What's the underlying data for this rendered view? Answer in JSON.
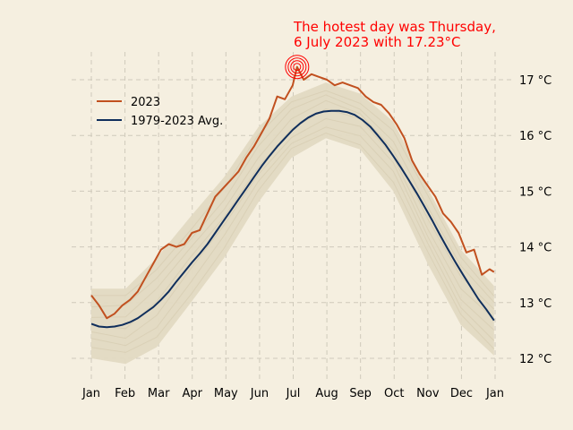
{
  "chart_data": {
    "type": "line",
    "title": "",
    "xlabel": "",
    "ylabel": "",
    "y_unit_suffix": " °C",
    "ylim": [
      11.6,
      17.6
    ],
    "yticks": [
      12,
      13,
      14,
      15,
      16,
      17
    ],
    "x_tick_labels": [
      "Jan",
      "Feb",
      "Mar",
      "Apr",
      "May",
      "Jun",
      "Jul",
      "Aug",
      "Sep",
      "Oct",
      "Nov",
      "Dec",
      "Jan"
    ],
    "grid": true,
    "legend_position": "upper-left",
    "annotation": {
      "line1": "The hotest day was Thursday,",
      "line2": "6 July 2023 with 17.23°C",
      "color": "#ff0000",
      "date": "2023-07-06",
      "value": 17.23
    },
    "background_color": "#f5efe0",
    "history_band_color": "#e1d9c2",
    "series": [
      {
        "name": "2023",
        "color": "#c1501f",
        "points": [
          [
            "Jan 1",
            13.13
          ],
          [
            "Jan 8",
            12.95
          ],
          [
            "Jan 15",
            12.72
          ],
          [
            "Jan 22",
            12.8
          ],
          [
            "Jan 29",
            12.95
          ],
          [
            "Feb 5",
            13.05
          ],
          [
            "Feb 12",
            13.2
          ],
          [
            "Feb 19",
            13.45
          ],
          [
            "Feb 26",
            13.7
          ],
          [
            "Mar 5",
            13.95
          ],
          [
            "Mar 12",
            14.05
          ],
          [
            "Mar 19",
            14.0
          ],
          [
            "Mar 26",
            14.05
          ],
          [
            "Apr 2",
            14.25
          ],
          [
            "Apr 9",
            14.3
          ],
          [
            "Apr 16",
            14.6
          ],
          [
            "Apr 23",
            14.9
          ],
          [
            "Apr 30",
            15.05
          ],
          [
            "May 7",
            15.2
          ],
          [
            "May 14",
            15.35
          ],
          [
            "May 21",
            15.6
          ],
          [
            "May 28",
            15.8
          ],
          [
            "Jun 4",
            16.05
          ],
          [
            "Jun 11",
            16.3
          ],
          [
            "Jun 18",
            16.7
          ],
          [
            "Jun 25",
            16.65
          ],
          [
            "Jul 2",
            16.9
          ],
          [
            "Jul 6",
            17.23
          ],
          [
            "Jul 12",
            17.0
          ],
          [
            "Jul 19",
            17.1
          ],
          [
            "Jul 26",
            17.05
          ],
          [
            "Aug 2",
            17.0
          ],
          [
            "Aug 9",
            16.9
          ],
          [
            "Aug 16",
            16.95
          ],
          [
            "Aug 23",
            16.9
          ],
          [
            "Aug 30",
            16.85
          ],
          [
            "Sep 6",
            16.7
          ],
          [
            "Sep 13",
            16.6
          ],
          [
            "Sep 20",
            16.55
          ],
          [
            "Sep 27",
            16.4
          ],
          [
            "Oct 4",
            16.2
          ],
          [
            "Oct 11",
            15.95
          ],
          [
            "Oct 18",
            15.55
          ],
          [
            "Oct 25",
            15.3
          ],
          [
            "Nov 1",
            15.1
          ],
          [
            "Nov 8",
            14.9
          ],
          [
            "Nov 15",
            14.6
          ],
          [
            "Nov 22",
            14.45
          ],
          [
            "Nov 29",
            14.25
          ],
          [
            "Dec 6",
            13.9
          ],
          [
            "Dec 13",
            13.95
          ],
          [
            "Dec 20",
            13.5
          ],
          [
            "Dec 27",
            13.6
          ],
          [
            "Dec 31",
            13.55
          ]
        ]
      },
      {
        "name": "1979-2023 Avg.",
        "color": "#0f2e5c",
        "points": [
          [
            "Jan 1",
            12.62
          ],
          [
            "Jan 8",
            12.57
          ],
          [
            "Jan 15",
            12.56
          ],
          [
            "Jan 22",
            12.57
          ],
          [
            "Jan 29",
            12.6
          ],
          [
            "Feb 5",
            12.65
          ],
          [
            "Feb 12",
            12.72
          ],
          [
            "Feb 19",
            12.82
          ],
          [
            "Feb 26",
            12.92
          ],
          [
            "Mar 5",
            13.05
          ],
          [
            "Mar 12",
            13.2
          ],
          [
            "Mar 19",
            13.38
          ],
          [
            "Mar 26",
            13.55
          ],
          [
            "Apr 2",
            13.72
          ],
          [
            "Apr 9",
            13.88
          ],
          [
            "Apr 16",
            14.05
          ],
          [
            "Apr 23",
            14.25
          ],
          [
            "Apr 30",
            14.45
          ],
          [
            "May 7",
            14.65
          ],
          [
            "May 14",
            14.85
          ],
          [
            "May 21",
            15.05
          ],
          [
            "May 28",
            15.25
          ],
          [
            "Jun 4",
            15.45
          ],
          [
            "Jun 11",
            15.63
          ],
          [
            "Jun 18",
            15.8
          ],
          [
            "Jun 25",
            15.95
          ],
          [
            "Jul 2",
            16.1
          ],
          [
            "Jul 9",
            16.22
          ],
          [
            "Jul 16",
            16.32
          ],
          [
            "Jul 23",
            16.39
          ],
          [
            "Jul 30",
            16.43
          ],
          [
            "Aug 6",
            16.44
          ],
          [
            "Aug 13",
            16.44
          ],
          [
            "Aug 20",
            16.42
          ],
          [
            "Aug 27",
            16.37
          ],
          [
            "Sep 3",
            16.28
          ],
          [
            "Sep 10",
            16.16
          ],
          [
            "Sep 17",
            16.0
          ],
          [
            "Sep 24",
            15.83
          ],
          [
            "Oct 1",
            15.63
          ],
          [
            "Oct 8",
            15.42
          ],
          [
            "Oct 15",
            15.2
          ],
          [
            "Oct 22",
            14.97
          ],
          [
            "Oct 29",
            14.73
          ],
          [
            "Nov 5",
            14.48
          ],
          [
            "Nov 12",
            14.22
          ],
          [
            "Nov 19",
            13.97
          ],
          [
            "Nov 26",
            13.73
          ],
          [
            "Dec 3",
            13.5
          ],
          [
            "Dec 10",
            13.28
          ],
          [
            "Dec 17",
            13.06
          ],
          [
            "Dec 24",
            12.88
          ],
          [
            "Dec 31",
            12.68
          ]
        ]
      }
    ],
    "history_band": {
      "upper": [
        [
          "Jan 1",
          13.25
        ],
        [
          "Feb 1",
          13.25
        ],
        [
          "Mar 1",
          13.8
        ],
        [
          "Apr 1",
          14.55
        ],
        [
          "May 1",
          15.25
        ],
        [
          "Jun 1",
          16.15
        ],
        [
          "Jul 1",
          16.7
        ],
        [
          "Aug 1",
          16.95
        ],
        [
          "Sep 1",
          16.75
        ],
        [
          "Oct 1",
          16.25
        ],
        [
          "Nov 1",
          15.05
        ],
        [
          "Dec 1",
          13.95
        ],
        [
          "Dec 31",
          13.3
        ]
      ],
      "lower": [
        [
          "Jan 1",
          12.0
        ],
        [
          "Feb 1",
          11.9
        ],
        [
          "Mar 1",
          12.2
        ],
        [
          "Apr 1",
          13.0
        ],
        [
          "May 1",
          13.8
        ],
        [
          "Jun 1",
          14.8
        ],
        [
          "Jul 1",
          15.6
        ],
        [
          "Aug 1",
          15.95
        ],
        [
          "Sep 1",
          15.75
        ],
        [
          "Oct 1",
          15.0
        ],
        [
          "Nov 1",
          13.7
        ],
        [
          "Dec 1",
          12.6
        ],
        [
          "Dec 31",
          12.05
        ]
      ]
    }
  }
}
